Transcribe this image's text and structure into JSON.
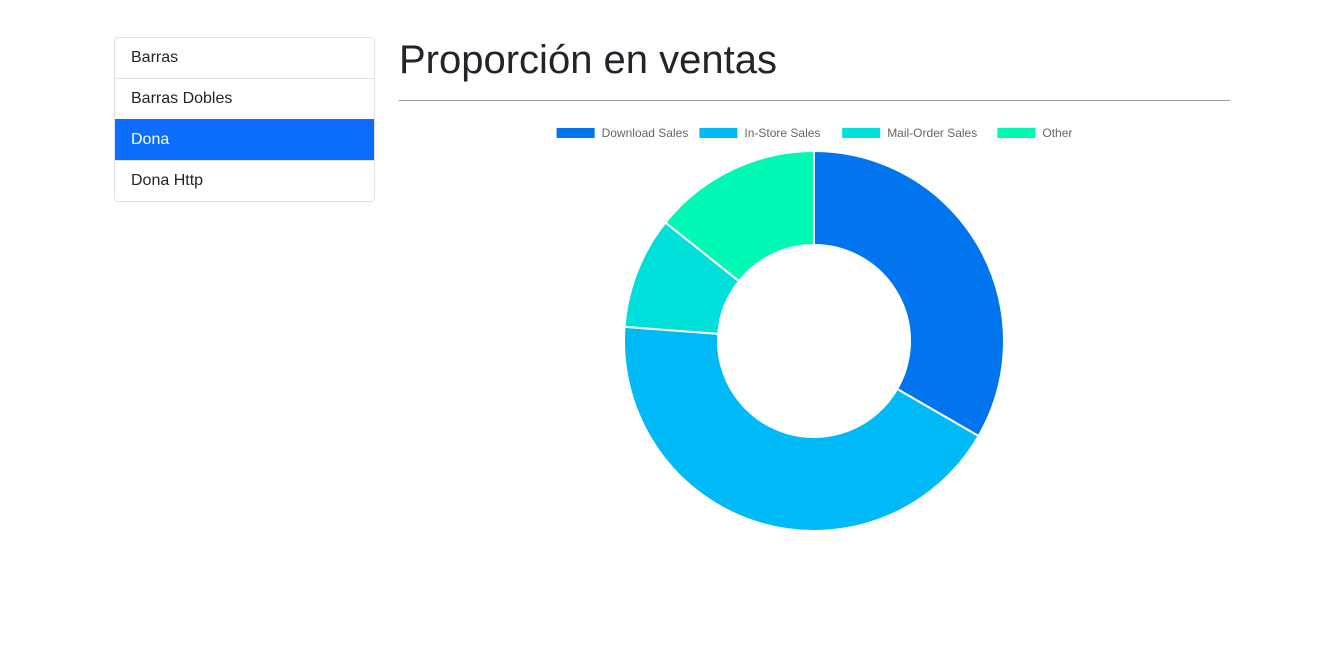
{
  "sidebar": {
    "items": [
      {
        "label": "Barras",
        "active": false
      },
      {
        "label": "Barras Dobles",
        "active": false
      },
      {
        "label": "Dona",
        "active": true
      },
      {
        "label": "Dona Http",
        "active": false
      }
    ],
    "active_color": "#0d6efd"
  },
  "main": {
    "title": "Proporción en ventas"
  },
  "chart_data": {
    "type": "doughnut",
    "title": "",
    "categories": [
      "Download Sales",
      "In-Store Sales",
      "Mail-Order Sales",
      "Other"
    ],
    "values": [
      350,
      450,
      100,
      150
    ],
    "colors": [
      "#0075ed",
      "#00baf7",
      "#00e0db",
      "#00fab6"
    ],
    "legend_position": "top"
  }
}
